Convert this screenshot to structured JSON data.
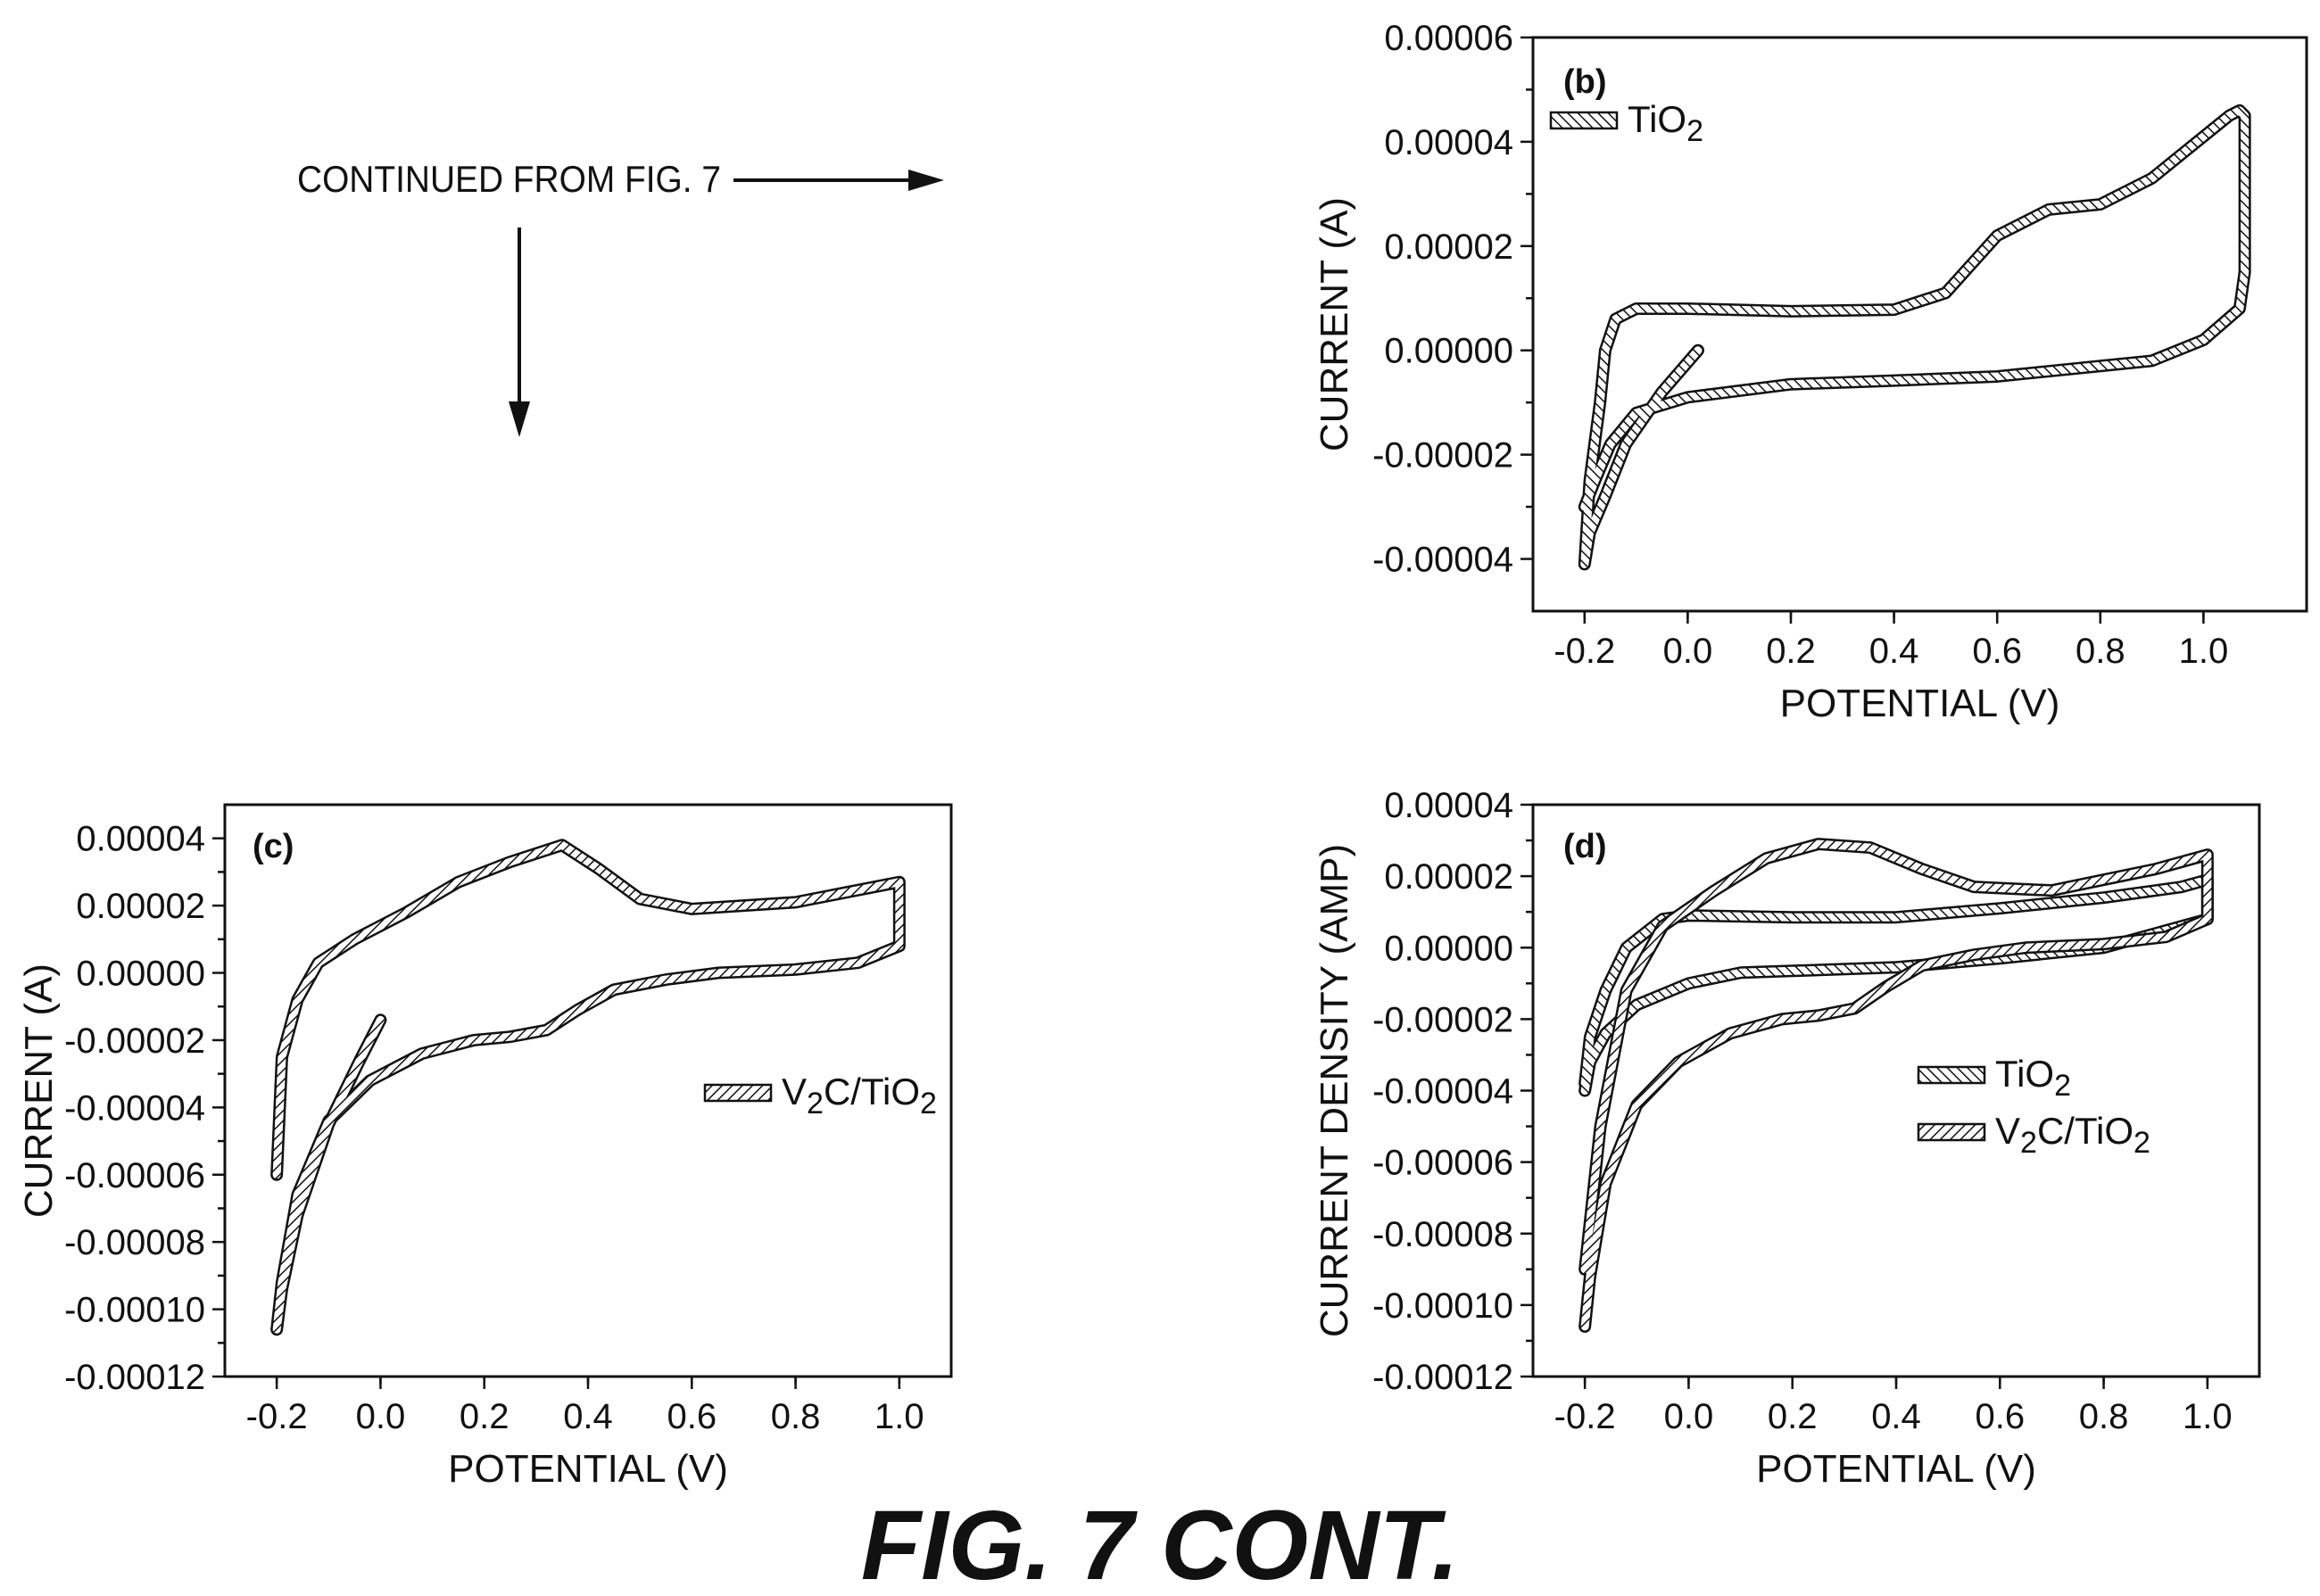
{
  "figure": {
    "continued_text": "CONTINUED FROM FIG. 7",
    "caption": "FIG. 7 CONT."
  },
  "colors": {
    "ink": "#111111",
    "background": "#ffffff"
  },
  "chart_data": [
    {
      "panel": "(b)",
      "type": "line",
      "xlabel": "POTENTIAL (V)",
      "ylabel": "CURRENT (A)",
      "xlim": [
        -0.3,
        1.2
      ],
      "ylim": [
        -5e-05,
        6e-05
      ],
      "xticks": [
        "-0.2",
        "0.0",
        "0.2",
        "0.4",
        "0.6",
        "0.8",
        "1.0"
      ],
      "yticks": [
        "0.00006",
        "0.00004",
        "0.00002",
        "0.00000",
        "-0.00002",
        "-0.00004"
      ],
      "legend_position": "top-left",
      "series": [
        {
          "name": "TiO",
          "name_sub": "2",
          "pattern": "backslash-hatch",
          "x": [
            0.02,
            -0.05,
            -0.12,
            -0.16,
            -0.19,
            -0.2,
            -0.19,
            -0.17,
            -0.16,
            -0.14,
            -0.1,
            0.0,
            0.2,
            0.4,
            0.5,
            0.6,
            0.7,
            0.8,
            0.9,
            1.0,
            1.05,
            1.07,
            1.08,
            1.08,
            1.07,
            1.0,
            0.9,
            0.8,
            0.6,
            0.4,
            0.2,
            0.0,
            -0.1,
            -0.15,
            -0.18,
            -0.2
          ],
          "y": [
            0.0,
            -8e-06,
            -1.8e-05,
            -2.8e-05,
            -3.5e-05,
            -4.1e-05,
            -2.5e-05,
            -1e-05,
            0.0,
            6e-06,
            8e-06,
            8e-06,
            7.5e-06,
            7.8e-06,
            1.1e-05,
            2.2e-05,
            2.7e-05,
            2.8e-05,
            3.3e-05,
            4.1e-05,
            4.5e-05,
            4.6e-05,
            4.5e-05,
            1.5e-05,
            8e-06,
            2e-06,
            -2e-06,
            -3e-06,
            -5e-06,
            -5.8e-06,
            -6.5e-06,
            -9e-06,
            -1.2e-05,
            -1.8e-05,
            -2.5e-05,
            -3e-05
          ]
        }
      ]
    },
    {
      "panel": "(c)",
      "type": "line",
      "xlabel": "POTENTIAL (V)",
      "ylabel": "CURRENT (A)",
      "xlim": [
        -0.3,
        1.1
      ],
      "ylim": [
        -0.00012,
        5e-05
      ],
      "xticks": [
        "-0.2",
        "0.0",
        "0.2",
        "0.4",
        "0.6",
        "0.8",
        "1.0"
      ],
      "yticks": [
        "0.00004",
        "0.00002",
        "0.00000",
        "-0.00002",
        "-0.00004",
        "-0.00006",
        "-0.00008",
        "-0.00010",
        "-0.00012"
      ],
      "legend_position": "center-right",
      "series": [
        {
          "name": "V",
          "name_sub": "2",
          "name_suffix": "C/TiO",
          "name_suffix_sub": "2",
          "pattern": "slash-hatch",
          "x": [
            0.0,
            -0.04,
            -0.1,
            -0.16,
            -0.19,
            -0.2,
            -0.19,
            -0.16,
            -0.1,
            -0.02,
            0.08,
            0.18,
            0.25,
            0.32,
            0.38,
            0.45,
            0.55,
            0.65,
            0.8,
            0.92,
            1.0,
            1.0,
            0.9,
            0.8,
            0.6,
            0.5,
            0.42,
            0.35,
            0.25,
            0.15,
            0.05,
            -0.05,
            -0.12,
            -0.16,
            -0.19,
            -0.2
          ],
          "y": [
            -1.4e-05,
            -2.6e-05,
            -4.5e-05,
            -7.2e-05,
            -9.4e-05,
            -0.000106,
            -9.2e-05,
            -6.6e-05,
            -4.4e-05,
            -3.2e-05,
            -2.4e-05,
            -2e-05,
            -1.9e-05,
            -1.7e-05,
            -1.1e-05,
            -5e-06,
            -2e-06,
            0.0,
            1e-06,
            3e-06,
            8e-06,
            2.7e-05,
            2.4e-05,
            2.1e-05,
            1.9e-05,
            2.2e-05,
            3.1e-05,
            3.8e-05,
            3.3e-05,
            2.7e-05,
            1.8e-05,
            1e-05,
            3e-06,
            -8e-06,
            -2.5e-05,
            -6e-05
          ]
        }
      ]
    },
    {
      "panel": "(d)",
      "type": "line",
      "xlabel": "POTENTIAL (V)",
      "ylabel": "CURRENT DENSITY (AMP)",
      "xlim": [
        -0.3,
        1.1
      ],
      "ylim": [
        -0.00012,
        4e-05
      ],
      "xticks": [
        "-0.2",
        "0.0",
        "0.2",
        "0.4",
        "0.6",
        "0.8",
        "1.0"
      ],
      "yticks": [
        "0.00004",
        "0.00002",
        "0.00000",
        "-0.00002",
        "-0.00004",
        "-0.00006",
        "-0.00008",
        "-0.00010",
        "-0.00012"
      ],
      "legend_position": "center-right",
      "series": [
        {
          "name": "TiO",
          "name_sub": "2",
          "pattern": "backslash-hatch",
          "x": [
            -0.2,
            -0.19,
            -0.16,
            -0.12,
            -0.05,
            0.0,
            0.2,
            0.4,
            0.6,
            0.8,
            0.95,
            1.0,
            1.0,
            0.9,
            0.8,
            0.6,
            0.4,
            0.2,
            0.1,
            0.0,
            -0.1,
            -0.16,
            -0.19,
            -0.2
          ],
          "y": [
            -3.8e-05,
            -2.5e-05,
            -1.2e-05,
            0.0,
            8e-06,
            9e-06,
            8.5e-06,
            8.5e-06,
            1.1e-05,
            1.4e-05,
            1.7e-05,
            1.9e-05,
            8e-06,
            4e-06,
            0.0,
            -3e-06,
            -5.5e-06,
            -6.5e-06,
            -7e-06,
            -1e-05,
            -1.6e-05,
            -2.4e-05,
            -3.2e-05,
            -4e-05
          ]
        },
        {
          "name": "V",
          "name_sub": "2",
          "name_suffix": "C/TiO",
          "name_suffix_sub": "2",
          "pattern": "slash-hatch",
          "x": [
            -0.2,
            -0.19,
            -0.16,
            -0.1,
            -0.02,
            0.08,
            0.18,
            0.25,
            0.32,
            0.38,
            0.45,
            0.55,
            0.65,
            0.8,
            0.92,
            1.0,
            1.0,
            0.9,
            0.7,
            0.55,
            0.45,
            0.35,
            0.25,
            0.15,
            0.05,
            -0.05,
            -0.12,
            -0.17,
            -0.2
          ],
          "y": [
            -0.000106,
            -9.2e-05,
            -6.6e-05,
            -4.4e-05,
            -3.2e-05,
            -2.4e-05,
            -2e-05,
            -1.9e-05,
            -1.7e-05,
            -1.1e-05,
            -5e-06,
            -2e-06,
            0.0,
            1e-06,
            3e-06,
            8e-06,
            2.6e-05,
            2.2e-05,
            1.6e-05,
            1.7e-05,
            2.2e-05,
            2.8e-05,
            2.9e-05,
            2.5e-05,
            1.6e-05,
            6e-06,
            -1.2e-05,
            -5e-05,
            -9e-05
          ]
        }
      ]
    }
  ]
}
